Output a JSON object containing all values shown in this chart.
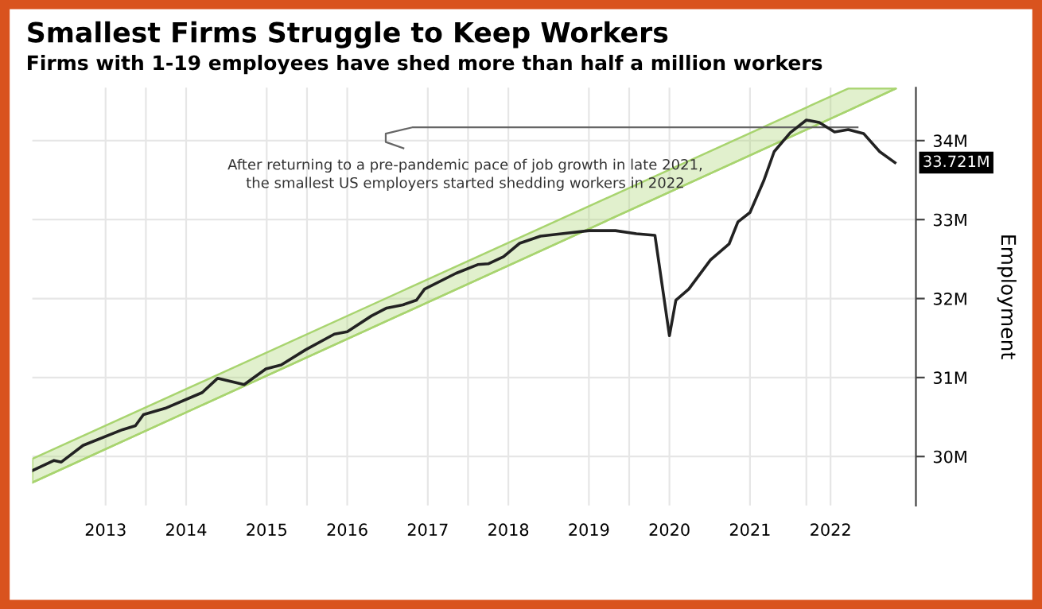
{
  "chart_data": {
    "type": "line",
    "title": "Smallest Firms Struggle to Keep Workers",
    "subtitle": "Firms with 1-19 employees have shed more than half a million workers",
    "ylabel": "Employment",
    "series": [
      {
        "type": "line",
        "color": "#a8d46f",
        "x": [
          2012.09,
          2022.22,
          2022.81
        ],
        "values": [
          29.67,
          34.38,
          34.66
        ],
        "lower": [
          29.67,
          34.38,
          34.66
        ],
        "upper": [
          29.97,
          34.66,
          34.66
        ]
      },
      {
        "type": "line",
        "color": "#222222",
        "x": [
          2012.09,
          2012.36,
          2012.45,
          2012.72,
          2013.21,
          2013.37,
          2013.47,
          2013.74,
          2014.2,
          2014.39,
          2014.72,
          2014.99,
          2015.18,
          2015.48,
          2015.84,
          2016.0,
          2016.3,
          2016.49,
          2016.69,
          2016.86,
          2016.96,
          2017.35,
          2017.62,
          2017.75,
          2017.94,
          2018.14,
          2018.4,
          2018.66,
          2019.0,
          2019.33,
          2019.59,
          2019.82,
          2020.0,
          2020.08,
          2020.24,
          2020.51,
          2020.74,
          2020.85,
          2021.0,
          2021.17,
          2021.3,
          2021.5,
          2021.7,
          2021.86,
          2022.05,
          2022.22,
          2022.41,
          2022.61,
          2022.8
        ],
        "values": [
          29.82,
          29.95,
          29.93,
          30.14,
          30.34,
          30.39,
          30.53,
          30.61,
          30.81,
          30.99,
          30.91,
          31.11,
          31.16,
          31.35,
          31.55,
          31.58,
          31.78,
          31.88,
          31.92,
          31.98,
          32.12,
          32.32,
          32.43,
          32.44,
          32.53,
          32.7,
          32.79,
          32.82,
          32.86,
          32.86,
          32.82,
          32.8,
          31.53,
          31.98,
          32.12,
          32.49,
          32.69,
          32.97,
          33.09,
          33.49,
          33.86,
          34.1,
          34.26,
          34.23,
          34.11,
          34.14,
          34.09,
          33.86,
          33.721
        ],
        "value_labels": [
          null,
          null,
          null,
          null,
          null,
          null,
          null,
          null,
          null,
          null,
          null,
          null,
          null,
          null,
          null,
          null,
          null,
          null,
          null,
          null,
          null,
          null,
          null,
          null,
          null,
          null,
          null,
          null,
          null,
          null,
          null,
          null,
          null,
          null,
          null,
          null,
          null,
          null,
          null,
          null,
          null,
          null,
          null,
          null,
          null,
          null,
          null,
          null,
          "33.721M"
        ]
      }
    ],
    "xlim": [
      2012.09,
      2023.06
    ],
    "xticks": [
      {
        "value": 2013,
        "label": "2013"
      },
      {
        "value": 2013.5,
        "label": null
      },
      {
        "value": 2014,
        "label": "2014"
      },
      {
        "value": 2015,
        "label": "2015"
      },
      {
        "value": 2015.5,
        "label": null
      },
      {
        "value": 2016,
        "label": "2016"
      },
      {
        "value": 2017,
        "label": "2017"
      },
      {
        "value": 2017.5,
        "label": null
      },
      {
        "value": 2018,
        "label": "2018"
      },
      {
        "value": 2019,
        "label": "2019"
      },
      {
        "value": 2019.5,
        "label": null
      },
      {
        "value": 2020,
        "label": "2020"
      },
      {
        "value": 2021,
        "label": "2021"
      },
      {
        "value": 2021.7,
        "label": null
      },
      {
        "value": 2022,
        "label": "2022"
      }
    ],
    "ylim": [
      29.38,
      34.67
    ],
    "yticks": [
      {
        "value": 30,
        "label": "30M"
      },
      {
        "value": 31,
        "label": "31M"
      },
      {
        "value": 32,
        "label": "32M"
      },
      {
        "value": 33,
        "label": "33M"
      },
      {
        "value": 34,
        "label": "34M"
      }
    ],
    "grid": true,
    "annotations": [
      "After returning to a pre-pandemic pace of job growth in late 2021,\nthe smallest US employers started shedding workers in 2022"
    ]
  }
}
